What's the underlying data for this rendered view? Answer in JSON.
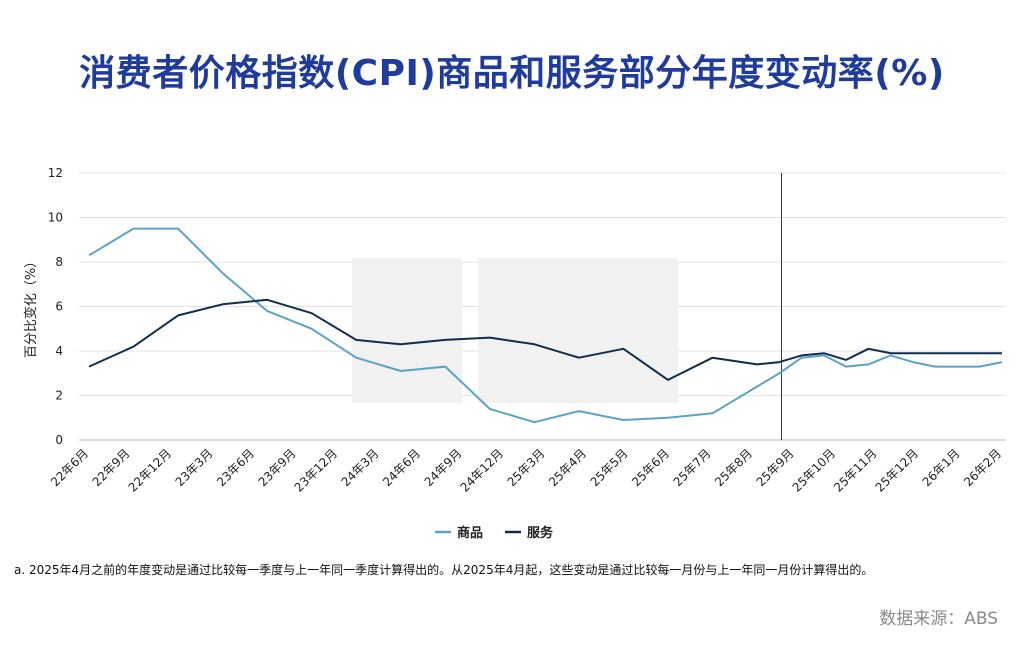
{
  "title": "消费者价格指数(CPI)商品和服务部分年度变动率(%)",
  "footnote": "a. 2025年4月之前的年度变动是通过比较每一季度与上一年同一季度计算得出的。从2025年4月起，这些变动是通过比较每一月份与上一年同一月份计算得出的。",
  "source": "数据来源：ABS",
  "colors": {
    "goods": "#5ba3c6",
    "services": "#0f2e4f",
    "title": "#1f3c9c"
  },
  "chart_data": {
    "type": "line",
    "ylabel": "百分比变化（%）",
    "ylim": [
      0,
      12
    ],
    "yticks": [
      0,
      2,
      4,
      6,
      8,
      10,
      12
    ],
    "grid": true,
    "legend_position": "bottom-center",
    "xtick_labels": [
      "22年6月",
      "22年9月",
      "22年12月",
      "23年3月",
      "23年6月",
      "23年9月",
      "23年12月",
      "24年3月",
      "24年6月",
      "24年9月",
      "24年12月",
      "25年3月",
      "25年4月",
      "25年5月",
      "25年6月",
      "25年7月",
      "25年8月",
      "25年9月",
      "25年10月",
      "25年11月",
      "25年12月",
      "26年1月",
      "26年2月"
    ],
    "marker_line_x": 31.1,
    "series": [
      {
        "name": "商品",
        "color": "#5ba3c6",
        "x": [
          0,
          2,
          3,
          4,
          6,
          8,
          10,
          12,
          14,
          16,
          18,
          20,
          22,
          24,
          26,
          28,
          30,
          31,
          32,
          33,
          34,
          35,
          36,
          37,
          38,
          39,
          40,
          41
        ],
        "y": [
          8.3,
          9.5,
          9.5,
          9.5,
          7.5,
          5.8,
          5.0,
          3.7,
          3.1,
          3.3,
          1.4,
          0.8,
          1.3,
          0.9,
          1.0,
          1.2,
          2.4,
          3.0,
          3.7,
          3.8,
          3.3,
          3.4,
          3.8,
          3.5,
          3.3,
          3.3,
          3.3,
          3.5
        ]
      },
      {
        "name": "服务",
        "color": "#0f2e4f",
        "x": [
          0,
          2,
          4,
          6,
          8,
          10,
          12,
          14,
          16,
          18,
          20,
          22,
          24,
          26,
          28,
          30,
          31,
          32,
          33,
          34,
          35,
          36,
          37,
          38,
          39,
          40,
          41
        ],
        "y": [
          3.3,
          4.2,
          5.6,
          6.1,
          6.3,
          5.7,
          4.5,
          4.3,
          4.5,
          4.6,
          4.3,
          3.7,
          4.1,
          2.7,
          3.7,
          3.4,
          3.5,
          3.8,
          3.9,
          3.6,
          4.1,
          3.9,
          3.9,
          3.9,
          3.9,
          3.9,
          3.9
        ]
      }
    ]
  }
}
